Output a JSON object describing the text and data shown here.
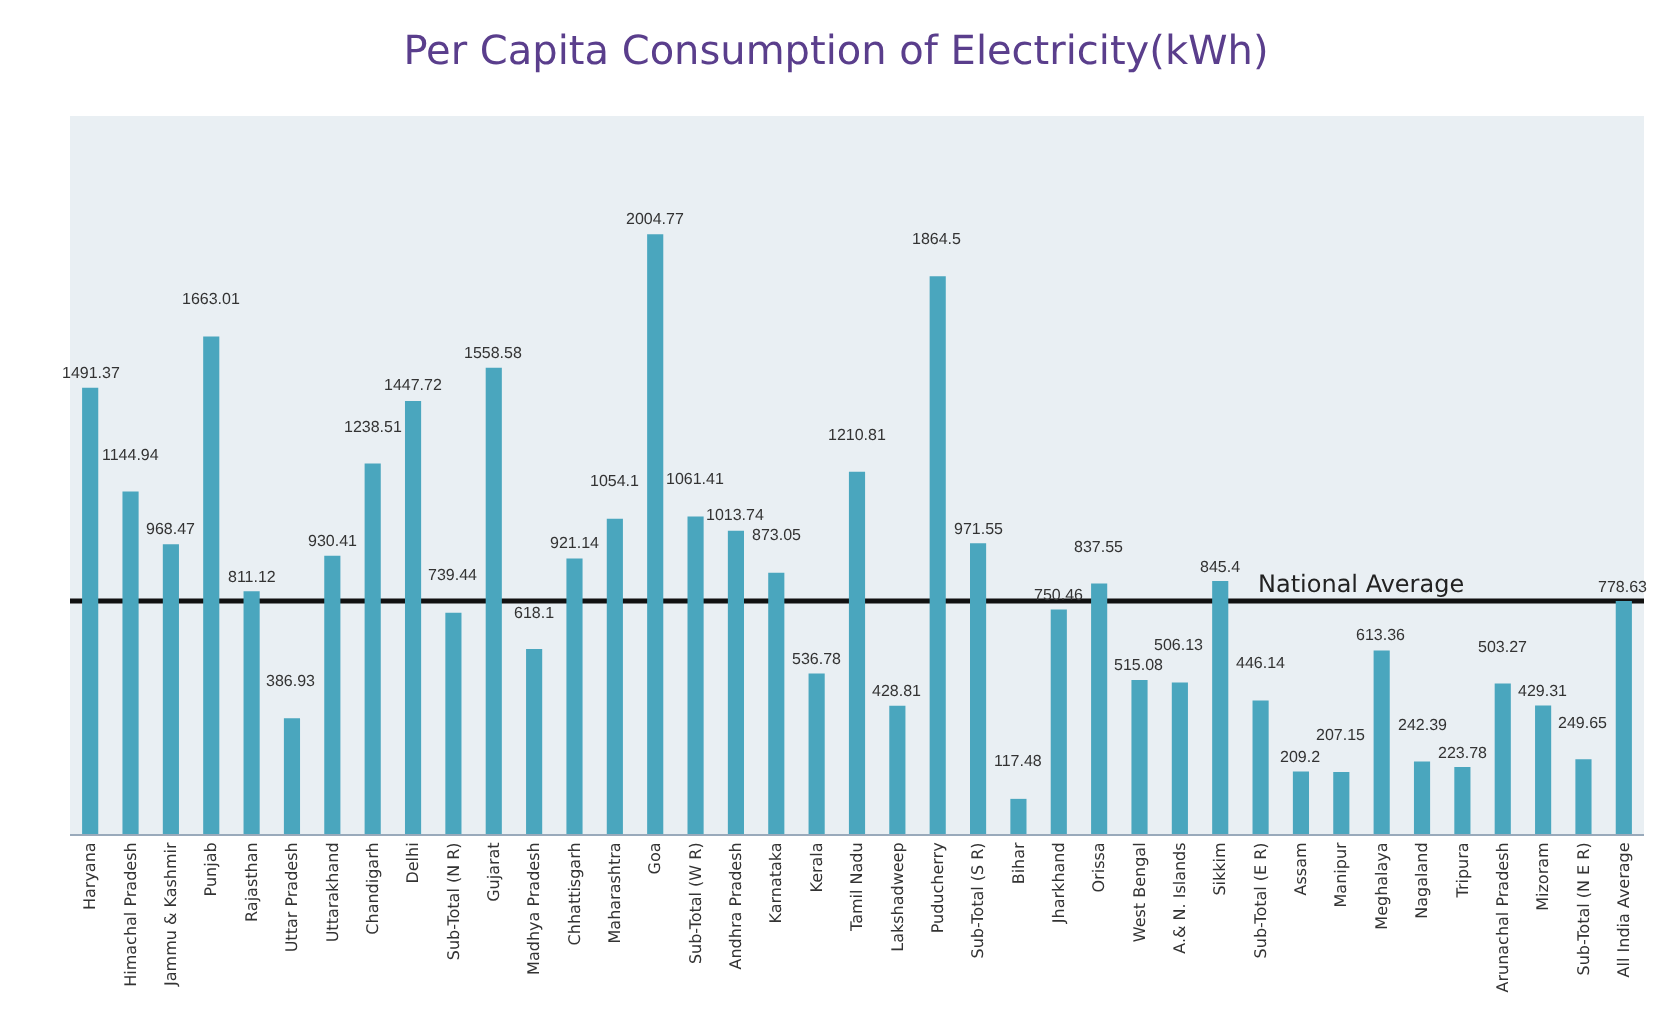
{
  "chart_data": {
    "type": "bar",
    "title": "Per Capita Consumption of Electricity(kWh)",
    "categories": [
      "Haryana",
      "Himachal Pradesh",
      "Jammu & Kashmir",
      "Punjab",
      "Rajasthan",
      "Uttar Pradesh",
      "Uttarakhand",
      "Chandigarh",
      "Delhi",
      "Sub-Total (N R)",
      "Gujarat",
      "Madhya Pradesh",
      "Chhattisgarh",
      "Maharashtra",
      "Goa",
      "Sub-Total (W R)",
      "Andhra Pradesh",
      "Karnataka",
      "Kerala",
      "Tamil Nadu",
      "Lakshadweep",
      "Puducherry",
      "Sub-Total (S R)",
      "Bihar",
      "Jharkhand",
      "Orissa",
      "West Bengal",
      "A.& N. Islands",
      "Sikkim",
      "Sub-Total (E R)",
      "Assam",
      "Manipur",
      "Meghalaya",
      "Nagaland",
      "Tripura",
      "Arunachal Pradesh",
      "Mizoram",
      "Sub-Total (N E R)",
      "All India Average"
    ],
    "values": [
      1491.37,
      1144.94,
      968.47,
      1663.01,
      811.12,
      386.93,
      930.41,
      1238.51,
      1447.72,
      739.44,
      1558.58,
      618.1,
      921.14,
      1054.1,
      2004.77,
      1061.41,
      1013.74,
      873.05,
      536.78,
      1210.81,
      428.81,
      1864.5,
      971.55,
      117.48,
      750.46,
      837.55,
      515.08,
      506.13,
      845.4,
      446.14,
      209.2,
      207.15,
      613.36,
      242.39,
      223.78,
      503.27,
      429.31,
      249.65,
      778.63
    ],
    "color": "#4aa6be",
    "ylim": [
      0,
      2400
    ],
    "data_labels": true,
    "grid": false,
    "legend": false,
    "tick_labels": "x",
    "ref_lines": [
      {
        "axis": "y",
        "value": 778.63,
        "label": "National Average",
        "color": "#111111"
      }
    ]
  }
}
